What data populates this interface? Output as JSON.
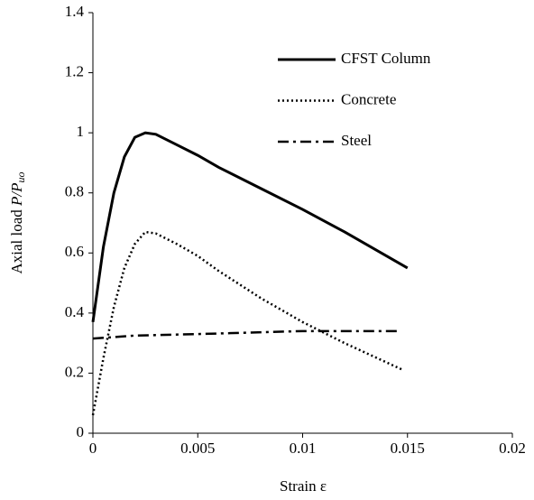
{
  "chart_data": {
    "type": "line",
    "x_label": "Strain ε",
    "y_label": {
      "text": "Axial load",
      "symbol": "P/P",
      "subscript": "uo"
    },
    "xlim": [
      0,
      0.02
    ],
    "xticks": [
      0,
      0.005,
      0.01,
      0.015,
      0.02
    ],
    "ylim": [
      0,
      1.4
    ],
    "yticks": [
      0,
      0.2,
      0.4,
      0.6,
      0.8,
      1,
      1.2,
      1.4
    ],
    "grid": false,
    "legend_position": "upper-right",
    "series": [
      {
        "name": "CFST Column",
        "color": "#000000",
        "style": "solid",
        "x": [
          0,
          0.0005,
          0.001,
          0.0015,
          0.002,
          0.0025,
          0.003,
          0.004,
          0.005,
          0.006,
          0.008,
          0.01,
          0.012,
          0.015
        ],
        "values": [
          0.37,
          0.62,
          0.8,
          0.92,
          0.985,
          1.0,
          0.995,
          0.96,
          0.925,
          0.885,
          0.815,
          0.745,
          0.67,
          0.55
        ]
      },
      {
        "name": "Concrete",
        "color": "#000000",
        "style": "dotted",
        "x": [
          0,
          0.0005,
          0.001,
          0.0015,
          0.002,
          0.0025,
          0.003,
          0.004,
          0.005,
          0.006,
          0.008,
          0.01,
          0.012,
          0.0148
        ],
        "values": [
          0.06,
          0.25,
          0.42,
          0.55,
          0.63,
          0.67,
          0.665,
          0.63,
          0.59,
          0.54,
          0.45,
          0.37,
          0.3,
          0.21
        ]
      },
      {
        "name": "Steel",
        "color": "#000000",
        "style": "dashdot",
        "x": [
          0,
          0.002,
          0.005,
          0.01,
          0.0145
        ],
        "values": [
          0.315,
          0.325,
          0.33,
          0.34,
          0.34
        ]
      }
    ]
  }
}
